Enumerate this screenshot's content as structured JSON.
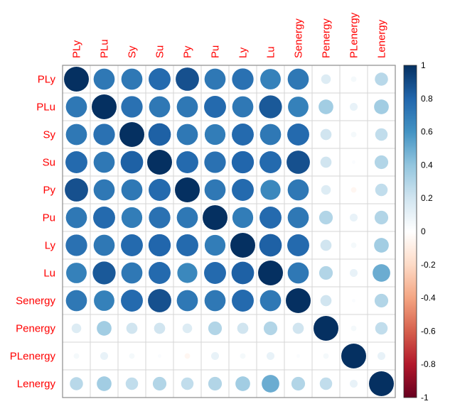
{
  "chart_data": {
    "type": "heatmap",
    "subtype": "correlation-circle-matrix",
    "title": "",
    "labels": [
      "PLy",
      "PLu",
      "Sy",
      "Su",
      "Py",
      "Pu",
      "Ly",
      "Lu",
      "Senergy",
      "Penergy",
      "PLenergy",
      "Lenergy"
    ],
    "matrix": [
      [
        1.0,
        0.72,
        0.72,
        0.78,
        0.88,
        0.72,
        0.75,
        0.68,
        0.72,
        0.15,
        0.05,
        0.28
      ],
      [
        0.72,
        1.0,
        0.75,
        0.72,
        0.72,
        0.78,
        0.72,
        0.85,
        0.68,
        0.35,
        0.1,
        0.35
      ],
      [
        0.72,
        0.75,
        1.0,
        0.82,
        0.72,
        0.7,
        0.78,
        0.72,
        0.78,
        0.2,
        0.05,
        0.25
      ],
      [
        0.78,
        0.72,
        0.82,
        1.0,
        0.78,
        0.75,
        0.8,
        0.78,
        0.88,
        0.2,
        0.02,
        0.3
      ],
      [
        0.88,
        0.72,
        0.72,
        0.78,
        1.0,
        0.72,
        0.78,
        0.65,
        0.72,
        0.15,
        -0.05,
        0.25
      ],
      [
        0.72,
        0.78,
        0.7,
        0.75,
        0.72,
        1.0,
        0.7,
        0.78,
        0.72,
        0.3,
        0.1,
        0.3
      ],
      [
        0.75,
        0.72,
        0.78,
        0.8,
        0.78,
        0.7,
        1.0,
        0.82,
        0.78,
        0.2,
        0.05,
        0.35
      ],
      [
        0.68,
        0.85,
        0.72,
        0.78,
        0.65,
        0.78,
        0.82,
        1.0,
        0.72,
        0.3,
        0.1,
        0.5
      ],
      [
        0.72,
        0.68,
        0.78,
        0.88,
        0.72,
        0.72,
        0.78,
        0.72,
        1.0,
        0.2,
        0.02,
        0.3
      ],
      [
        0.15,
        0.35,
        0.2,
        0.2,
        0.15,
        0.3,
        0.2,
        0.3,
        0.2,
        1.0,
        0.05,
        0.25
      ],
      [
        0.05,
        0.1,
        0.05,
        0.02,
        -0.05,
        0.1,
        0.05,
        0.1,
        0.02,
        0.05,
        1.0,
        0.1
      ],
      [
        0.28,
        0.35,
        0.25,
        0.3,
        0.25,
        0.3,
        0.35,
        0.5,
        0.3,
        0.25,
        0.1,
        1.0
      ]
    ],
    "value_range": [
      -1,
      1
    ],
    "colorbar_ticks": [
      "1",
      "0.8",
      "0.6",
      "0.4",
      "0.2",
      "0",
      "-0.2",
      "-0.4",
      "-0.6",
      "-0.8",
      "-1"
    ],
    "colorbar_tick_values": [
      1,
      0.8,
      0.6,
      0.4,
      0.2,
      0,
      -0.2,
      -0.4,
      -0.6,
      -0.8,
      -1
    ],
    "colormap": [
      "#67001F",
      "#B2182B",
      "#D6604D",
      "#F4A582",
      "#FDDBC7",
      "#FFFFFF",
      "#D1E5F0",
      "#92C5DE",
      "#4393C3",
      "#2166AC",
      "#053061"
    ],
    "label_color": "#FF0000",
    "tick_label_color": "#000000",
    "grid_color": "#d6d6d6",
    "border_color": "#8c8c8c",
    "grid": true,
    "legend_position": "right"
  }
}
